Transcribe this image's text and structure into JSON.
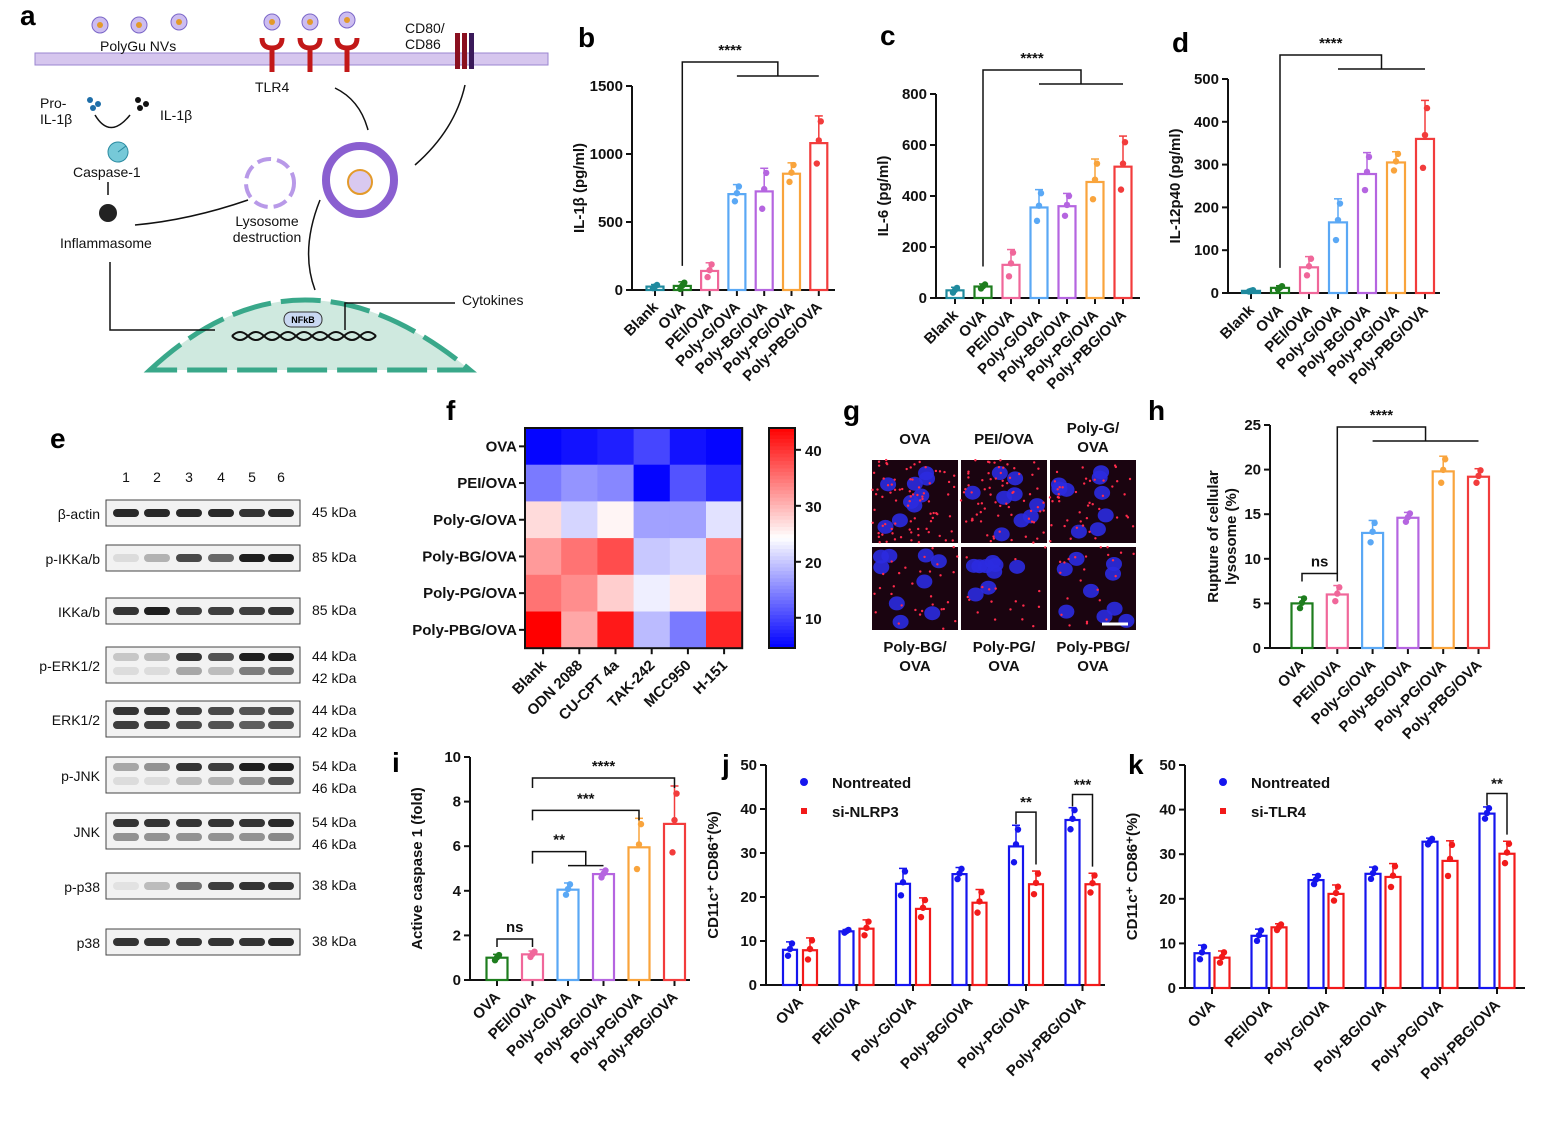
{
  "panel_letters": [
    "a",
    "b",
    "c",
    "d",
    "e",
    "f",
    "g",
    "h",
    "i",
    "j",
    "k"
  ],
  "schematic": {
    "nanovesicles": "PolyGu NVs",
    "receptor": "TLR4",
    "costim": "CD80/\nCD86",
    "pro_il1b": "Pro-\nIL-1β",
    "il1b": "IL-1β",
    "caspase": "Caspase-1",
    "lysosome": "Lysosome\ndestruction",
    "inflammasome": "Inflammasome",
    "nfkb": "NFkB",
    "cytokines": "Cytokines"
  },
  "colors": {
    "Blank": "#1f8a9e",
    "OVA": "#1e7d1e",
    "PEI/OVA": "#f0679a",
    "Poly-G/OVA": "#5aa8f5",
    "Poly-BG/OVA": "#b565e0",
    "Poly-PG/OVA": "#f9a43c",
    "Poly-PBG/OVA": "#f23c3c",
    "Nontreated": "#1515ee",
    "si": "#f21a1a"
  },
  "chart_data": [
    {
      "id": "b",
      "type": "bar",
      "ylabel": "IL-1β (pg/ml)",
      "ylim": [
        0,
        1500
      ],
      "yticks": [
        0,
        500,
        1000,
        1500
      ],
      "categories": [
        "Blank",
        "OVA",
        "PEI/OVA",
        "Poly-G/OVA",
        "Poly-BG/OVA",
        "Poly-PG/OVA",
        "Poly-PBG/OVA"
      ],
      "values": [
        25,
        30,
        140,
        705,
        725,
        855,
        1080
      ],
      "sd": [
        15,
        30,
        60,
        70,
        170,
        80,
        200
      ],
      "significance": [
        {
          "from": "OVA",
          "to": [
            "Poly-G/OVA",
            "Poly-PBG/OVA"
          ],
          "label": "****"
        }
      ]
    },
    {
      "id": "c",
      "type": "bar",
      "ylabel": "IL-6 (pg/ml)",
      "ylim": [
        0,
        800
      ],
      "yticks": [
        0,
        200,
        400,
        600,
        800
      ],
      "categories": [
        "Blank",
        "OVA",
        "PEI/OVA",
        "Poly-G/OVA",
        "Poly-BG/OVA",
        "Poly-PG/OVA",
        "Poly-PBG/OVA"
      ],
      "values": [
        30,
        45,
        130,
        355,
        360,
        455,
        515
      ],
      "sd": [
        12,
        10,
        60,
        70,
        50,
        90,
        120
      ],
      "significance": [
        {
          "from": "OVA",
          "to": [
            "Poly-G/OVA",
            "Poly-PBG/OVA"
          ],
          "label": "****"
        }
      ]
    },
    {
      "id": "d",
      "type": "bar",
      "ylabel": "IL-12p40 (pg/ml)",
      "ylim": [
        0,
        500
      ],
      "yticks": [
        0,
        100,
        200,
        300,
        400,
        500
      ],
      "categories": [
        "Blank",
        "OVA",
        "PEI/OVA",
        "Poly-G/OVA",
        "Poly-BG/OVA",
        "Poly-PG/OVA",
        "Poly-PBG/OVA"
      ],
      "values": [
        5,
        12,
        60,
        165,
        278,
        305,
        360
      ],
      "sd": [
        2,
        5,
        25,
        55,
        50,
        25,
        90
      ],
      "significance": [
        {
          "from": "OVA",
          "to": [
            "Poly-G/OVA",
            "Poly-PBG/OVA"
          ],
          "label": "****"
        }
      ]
    },
    {
      "id": "h",
      "type": "bar",
      "ylabel": "Rupture of cellular\nlysosome (%)",
      "ylim": [
        0,
        25
      ],
      "yticks": [
        0,
        5,
        10,
        15,
        20,
        25
      ],
      "categories": [
        "OVA",
        "PEI/OVA",
        "Poly-G/OVA",
        "Poly-BG/OVA",
        "Poly-PG/OVA",
        "Poly-PBG/OVA"
      ],
      "values": [
        5.0,
        6.0,
        12.9,
        14.6,
        19.8,
        19.2
      ],
      "sd": [
        0.7,
        1.0,
        1.4,
        0.6,
        1.7,
        0.9
      ],
      "significance": [
        {
          "from": "OVA",
          "to": [
            "PEI/OVA"
          ],
          "label": "ns"
        },
        {
          "from": "PEI/OVA",
          "to": [
            "Poly-G/OVA",
            "Poly-PBG/OVA"
          ],
          "label": "****"
        }
      ]
    },
    {
      "id": "i",
      "type": "bar",
      "ylabel": "Active caspase 1 (fold)",
      "ylim": [
        0,
        10
      ],
      "yticks": [
        0,
        2,
        4,
        6,
        8,
        10
      ],
      "categories": [
        "OVA",
        "PEI/OVA",
        "Poly-G/OVA",
        "Poly-BG/OVA",
        "Poly-PG/OVA",
        "Poly-PBG/OVA"
      ],
      "values": [
        1.0,
        1.15,
        4.05,
        4.75,
        5.95,
        7.0
      ],
      "sd": [
        0.15,
        0.15,
        0.3,
        0.2,
        1.3,
        1.7
      ],
      "significance": [
        {
          "from": "OVA",
          "to": [
            "PEI/OVA"
          ],
          "label": "ns"
        },
        {
          "from": "PEI/OVA",
          "to": [
            "Poly-G/OVA",
            "Poly-BG/OVA"
          ],
          "label": "**"
        },
        {
          "from": "PEI/OVA",
          "to": [
            "Poly-PG/OVA"
          ],
          "label": "***"
        },
        {
          "from": "PEI/OVA",
          "to": [
            "Poly-PBG/OVA"
          ],
          "label": "****"
        }
      ]
    },
    {
      "id": "j",
      "type": "grouped-bar",
      "ylabel": "CD11c⁺ CD86⁺(%)",
      "ylim": [
        0,
        50
      ],
      "yticks": [
        0,
        10,
        20,
        30,
        40,
        50
      ],
      "legend": "top-left",
      "categories": [
        "OVA",
        "PEI/OVA",
        "Poly-G/OVA",
        "Poly-BG/OVA",
        "Poly-PG/OVA",
        "Poly-PBG/OVA"
      ],
      "series": [
        {
          "name": "Nontreated",
          "values": [
            8.0,
            12.2,
            23.0,
            25.2,
            31.5,
            37.5
          ],
          "sd": [
            1.8,
            0.4,
            3.5,
            1.5,
            4.8,
            2.8
          ]
        },
        {
          "name": "si-NLRP3",
          "values": [
            7.9,
            12.8,
            17.3,
            18.7,
            22.9,
            22.9
          ],
          "sd": [
            2.8,
            2.0,
            2.5,
            3.0,
            3.0,
            2.5
          ]
        }
      ],
      "significance": [
        {
          "category": "Poly-PG/OVA",
          "label": "**"
        },
        {
          "category": "Poly-PBG/OVA",
          "label": "***"
        }
      ]
    },
    {
      "id": "k",
      "type": "grouped-bar",
      "ylabel": "CD11c⁺ CD86⁺(%)",
      "ylim": [
        0,
        50
      ],
      "yticks": [
        0,
        10,
        20,
        30,
        40,
        50
      ],
      "legend": "top-left",
      "categories": [
        "OVA",
        "PEI/OVA",
        "Poly-G/OVA",
        "Poly-BG/OVA",
        "Poly-PG/OVA",
        "Poly-PBG/OVA"
      ],
      "series": [
        {
          "name": "Nontreated",
          "values": [
            7.8,
            11.7,
            24.2,
            25.6,
            32.8,
            39.1
          ],
          "sd": [
            1.8,
            1.5,
            1.2,
            1.5,
            0.8,
            1.5
          ]
        },
        {
          "name": "si-TLR4",
          "values": [
            6.8,
            13.6,
            21.1,
            24.9,
            28.5,
            30.1
          ],
          "sd": [
            1.5,
            0.8,
            2.0,
            3.0,
            4.5,
            2.8
          ]
        }
      ],
      "significance": [
        {
          "category": "Poly-PBG/OVA",
          "label": "**"
        }
      ]
    },
    {
      "id": "f",
      "type": "heatmap",
      "zlim": [
        4.6,
        43.9
      ],
      "colorbar_ticks": [
        10,
        20,
        30,
        40
      ],
      "rows": [
        "OVA",
        "PEI/OVA",
        "Poly-G/OVA",
        "Poly-BG/OVA",
        "Poly-PG/OVA",
        "Poly-PBG/OVA"
      ],
      "columns": [
        "Blank",
        "ODN 2088",
        "CU-CPT 4a",
        "TAK-242",
        "MCC950",
        "H-151"
      ],
      "values": [
        [
          5,
          6,
          7,
          10,
          6,
          5
        ],
        [
          14,
          16,
          15,
          5,
          11,
          8
        ],
        [
          27,
          21,
          25,
          17,
          17,
          22
        ],
        [
          32,
          35,
          38,
          20,
          21,
          34
        ],
        [
          35,
          33,
          28,
          23,
          26,
          35
        ],
        [
          44,
          31,
          42,
          19,
          14,
          41
        ]
      ]
    }
  ],
  "western_blot": {
    "lanes": [
      "1",
      "2",
      "3",
      "4",
      "5",
      "6"
    ],
    "rows": [
      {
        "label": "β-actin",
        "kda": [
          "45 kDa"
        ],
        "intensity": [
          [
            0.9,
            0.9,
            0.9,
            0.9,
            0.85,
            0.9
          ]
        ]
      },
      {
        "label": "p-IKKa/b",
        "kda": [
          "85 kDa"
        ],
        "intensity": [
          [
            0.05,
            0.25,
            0.75,
            0.6,
            0.95,
            0.95
          ]
        ]
      },
      {
        "label": "IKKa/b",
        "kda": [
          "85 kDa"
        ],
        "intensity": [
          [
            0.85,
            0.95,
            0.8,
            0.8,
            0.8,
            0.85
          ]
        ]
      },
      {
        "label": "p-ERK1/2",
        "kda": [
          "44 kDa",
          "42 kDa"
        ],
        "intensity": [
          [
            0.15,
            0.2,
            0.85,
            0.7,
            0.95,
            0.95
          ],
          [
            0.05,
            0.05,
            0.3,
            0.2,
            0.5,
            0.6
          ]
        ]
      },
      {
        "label": "ERK1/2",
        "kda": [
          "44 kDa",
          "42 kDa"
        ],
        "intensity": [
          [
            0.85,
            0.85,
            0.8,
            0.75,
            0.7,
            0.75
          ],
          [
            0.8,
            0.8,
            0.75,
            0.7,
            0.65,
            0.7
          ]
        ]
      },
      {
        "label": "p-JNK",
        "kda": [
          "54 kDa",
          "46 kDa"
        ],
        "intensity": [
          [
            0.3,
            0.4,
            0.85,
            0.8,
            0.95,
            0.95
          ],
          [
            0.05,
            0.05,
            0.2,
            0.25,
            0.4,
            0.7
          ]
        ]
      },
      {
        "label": "JNK",
        "kda": [
          "54 kDa",
          "46 kDa"
        ],
        "intensity": [
          [
            0.85,
            0.85,
            0.85,
            0.85,
            0.85,
            0.9
          ],
          [
            0.4,
            0.4,
            0.4,
            0.4,
            0.4,
            0.45
          ]
        ]
      },
      {
        "label": "p-p38",
        "kda": [
          "38 kDa"
        ],
        "intensity": [
          [
            0.02,
            0.2,
            0.55,
            0.8,
            0.85,
            0.85
          ]
        ]
      },
      {
        "label": "p38",
        "kda": [
          "38 kDa"
        ],
        "intensity": [
          [
            0.85,
            0.85,
            0.85,
            0.85,
            0.85,
            0.9
          ]
        ]
      }
    ]
  },
  "micrographs": {
    "top_labels": [
      "OVA",
      "PEI/OVA",
      "Poly-G/\nOVA"
    ],
    "bottom_labels": [
      "Poly-BG/\nOVA",
      "Poly-PG/\nOVA",
      "Poly-PBG/\nOVA"
    ],
    "red_signal": [
      0.9,
      0.8,
      0.5,
      0.35,
      0.2,
      0.25
    ]
  }
}
